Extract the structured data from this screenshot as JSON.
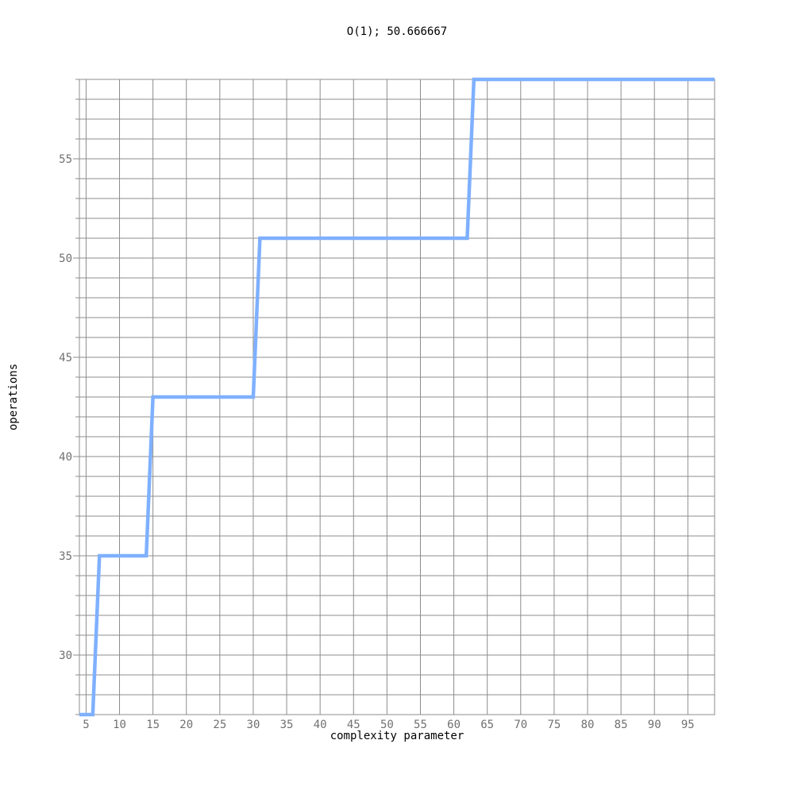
{
  "chart_data": {
    "type": "line",
    "title": "O(1); 50.666667",
    "xlabel": "complexity parameter",
    "ylabel": "operations",
    "xlim": [
      4,
      99
    ],
    "ylim": [
      27,
      59
    ],
    "grid": true,
    "x_ticks": [
      5,
      10,
      15,
      20,
      25,
      30,
      35,
      40,
      45,
      50,
      55,
      60,
      65,
      70,
      75,
      80,
      85,
      90,
      95
    ],
    "y_ticks": [
      30,
      35,
      40,
      45,
      50,
      55
    ],
    "series": [
      {
        "color": "#7fb0ff",
        "x": [
          4,
          6,
          7,
          14,
          15,
          30,
          31,
          62,
          63,
          99
        ],
        "y": [
          27,
          27,
          35,
          35,
          43,
          43,
          51,
          51,
          59,
          59
        ]
      }
    ]
  }
}
